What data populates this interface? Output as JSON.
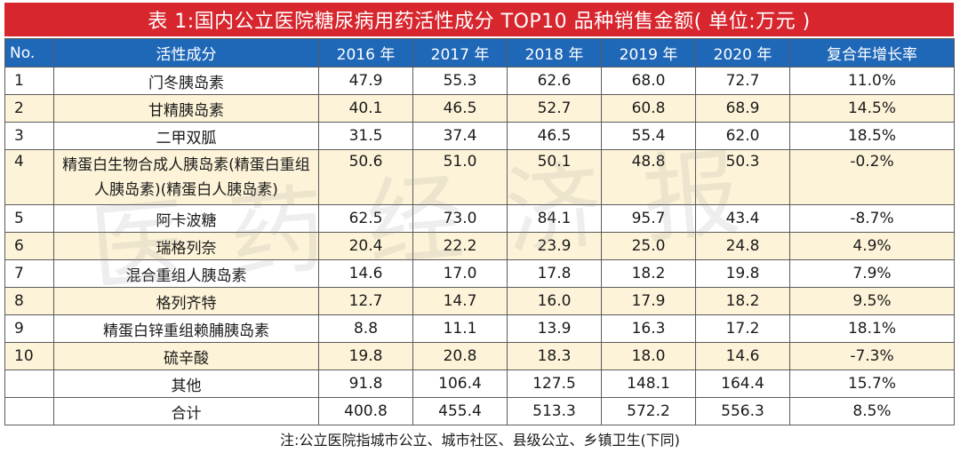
{
  "title": "表 1:国内公立医院糖尿病用药活性成分 TOP10 品种销售金额( 单位:万元 )",
  "headers": [
    "No.",
    "活性成分",
    "2016 年",
    "2017 年",
    "2018 年",
    "2019 年",
    "2020 年",
    "复合年增长率"
  ],
  "rows": [
    {
      "no": "1",
      "name": "门冬胰岛素",
      "values": [
        "47.9",
        "55.3",
        "62.6",
        "68.0",
        "72.7"
      ],
      "cagr": "11.0%"
    },
    {
      "no": "2",
      "name": "甘精胰岛素",
      "values": [
        "40.1",
        "46.5",
        "52.7",
        "60.8",
        "68.9"
      ],
      "cagr": "14.5%"
    },
    {
      "no": "3",
      "name": "二甲双胍",
      "values": [
        "31.5",
        "37.4",
        "46.5",
        "55.4",
        "62.0"
      ],
      "cagr": "18.5%"
    },
    {
      "no": "4",
      "name": "精蛋白生物合成人胰岛素(精蛋白重组人胰岛素)(精蛋白人胰岛素)",
      "values": [
        "50.6",
        "51.0",
        "50.1",
        "48.8",
        "50.3"
      ],
      "cagr": "-0.2%"
    },
    {
      "no": "5",
      "name": "阿卡波糖",
      "values": [
        "62.5",
        "73.0",
        "84.1",
        "95.7",
        "43.4"
      ],
      "cagr": "-8.7%"
    },
    {
      "no": "6",
      "name": "瑞格列奈",
      "values": [
        "20.4",
        "22.2",
        "23.9",
        "25.0",
        "24.8"
      ],
      "cagr": "4.9%"
    },
    {
      "no": "7",
      "name": "混合重组人胰岛素",
      "values": [
        "14.6",
        "17.0",
        "17.8",
        "18.2",
        "19.8"
      ],
      "cagr": "7.9%"
    },
    {
      "no": "8",
      "name": "格列齐特",
      "values": [
        "12.7",
        "14.7",
        "16.0",
        "17.9",
        "18.2"
      ],
      "cagr": "9.5%"
    },
    {
      "no": "9",
      "name": "精蛋白锌重组赖脯胰岛素",
      "values": [
        "8.8",
        "11.1",
        "13.9",
        "16.3",
        "17.2"
      ],
      "cagr": "18.1%"
    },
    {
      "no": "10",
      "name": "硫辛酸",
      "values": [
        "19.8",
        "20.8",
        "18.3",
        "18.0",
        "14.6"
      ],
      "cagr": "-7.3%"
    },
    {
      "no": "",
      "name": "其他",
      "values": [
        "91.8",
        "106.4",
        "127.5",
        "148.1",
        "164.4"
      ],
      "cagr": "15.7%"
    },
    {
      "no": "",
      "name": "合计",
      "values": [
        "400.8",
        "455.4",
        "513.3",
        "572.2",
        "556.3"
      ],
      "cagr": "8.5%"
    }
  ],
  "watermark": "医药经济报",
  "footnote": "注:公立医院指城市公立、城市社区、县级公立、乡镇卫生(下同)"
}
